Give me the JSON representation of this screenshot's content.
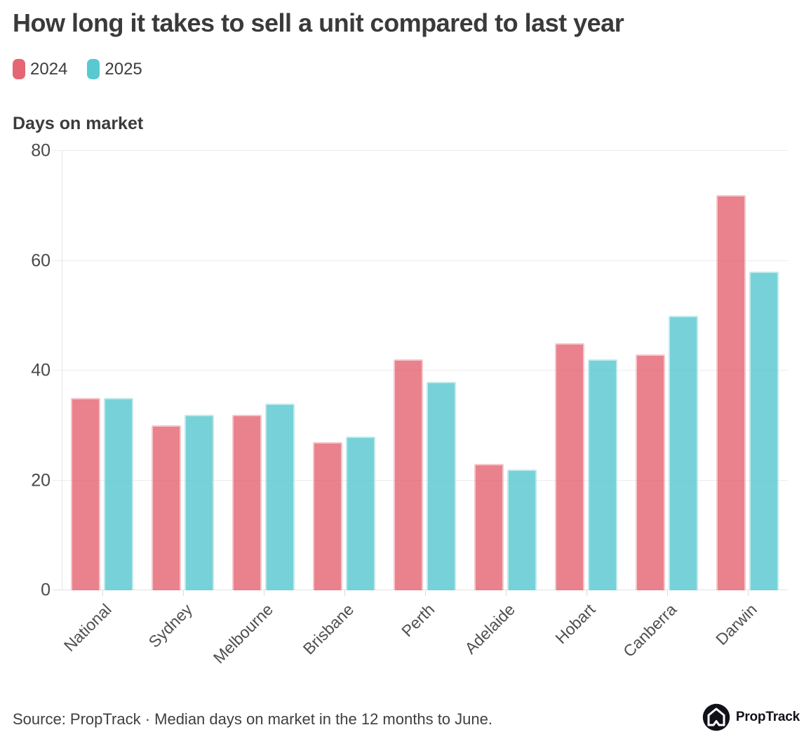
{
  "chart_data": {
    "type": "bar",
    "title": "How long it takes to sell a unit compared to last year",
    "ylabel": "Days on market",
    "xlabel": "",
    "categories": [
      "National",
      "Sydney",
      "Melbourne",
      "Brisbane",
      "Perth",
      "Adelaide",
      "Hobart",
      "Canberra",
      "Darwin"
    ],
    "series": [
      {
        "name": "2024",
        "color": "#e56774",
        "values": [
          35,
          30,
          32,
          27,
          42,
          23,
          45,
          43,
          72
        ]
      },
      {
        "name": "2025",
        "color": "#58c9d0",
        "values": [
          35,
          32,
          34,
          28,
          38,
          22,
          42,
          50,
          58
        ]
      }
    ],
    "ylim": [
      0,
      80
    ],
    "yticks": [
      0,
      20,
      40,
      60,
      80
    ],
    "grid": true,
    "legend_position": "top-left",
    "bar_opacity": 0.82
  },
  "source": {
    "text": "Source: PropTrack · Median days on market in the 12 months to June."
  },
  "brand": {
    "name": "PropTrack",
    "icon": "house-arrow-icon"
  }
}
